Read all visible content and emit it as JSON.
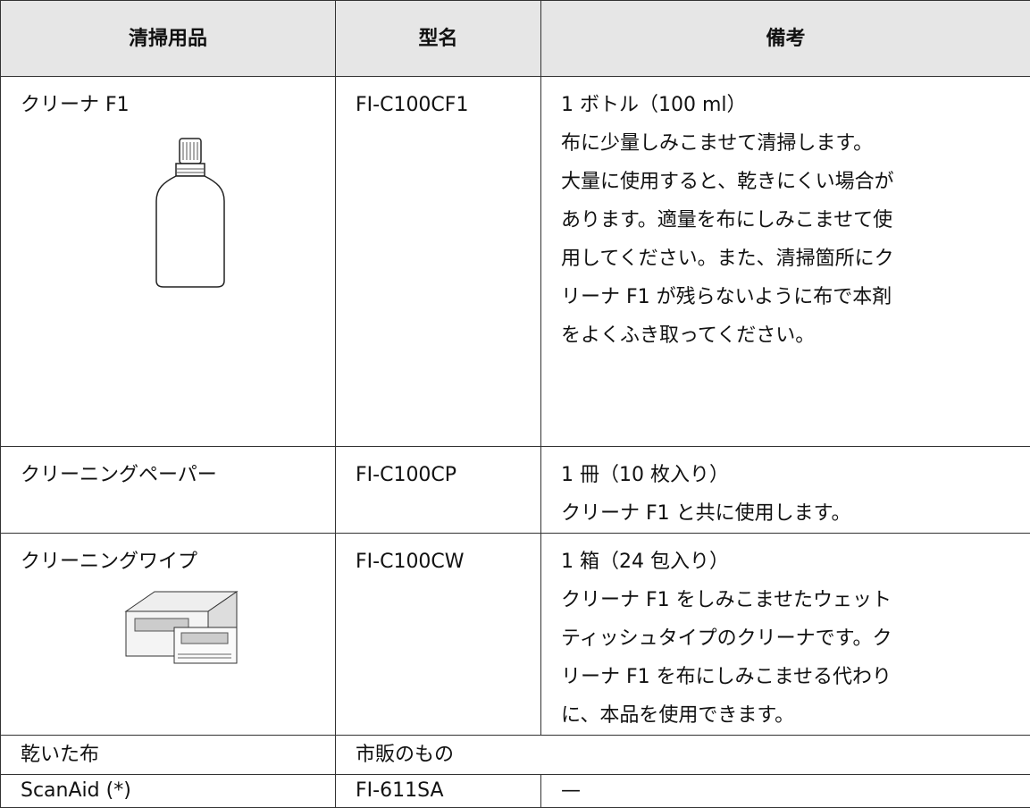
{
  "table": {
    "header": [
      "清掃用品",
      "型名",
      "備考"
    ],
    "rows": [
      {
        "item": "クリーナ F1",
        "model": "FI-C100CF1",
        "notes": [
          "1 ボトル（100 ml）",
          "布に少量しみこませて清掃します。",
          "大量に使用すると、乾きにくい場合が",
          "あります。適量を布にしみこませて使",
          "用してください。また、清掃箇所にク",
          "リーナ F1 が残らないように布で本剤",
          "をよくふき取ってください。"
        ]
      },
      {
        "item": "クリーニングペーパー",
        "model": "FI-C100CP",
        "notes": [
          "1 冊（10 枚入り）",
          "クリーナ F1 と共に使用します。"
        ]
      },
      {
        "item": "クリーニングワイプ",
        "model": "FI-C100CW",
        "notes": [
          "1 箱（24 包入り）",
          "クリーナ F1 をしみこませたウェット",
          "ティッシュタイプのクリーナです。ク",
          "リーナ F1 を布にしみこませる代わり",
          "に、本品を使用できます。"
        ]
      },
      {
        "item": "乾いた布",
        "model": "市販のもの"
      },
      {
        "item": "ScanAid (*)",
        "model": "FI-611SA",
        "notes": [
          "—"
        ]
      }
    ]
  }
}
